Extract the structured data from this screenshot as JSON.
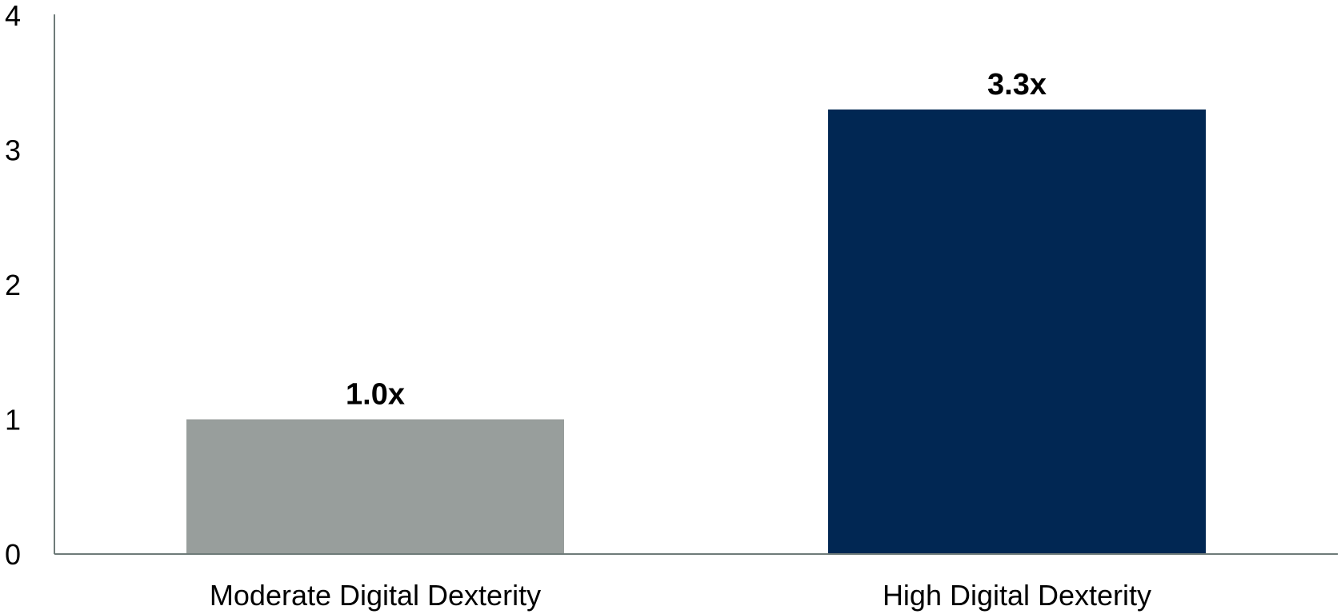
{
  "chart_data": {
    "type": "bar",
    "categories": [
      "Moderate Digital Dexterity",
      "High Digital Dexterity"
    ],
    "values": [
      1.0,
      3.3
    ],
    "data_labels": [
      "1.0x",
      "3.3x"
    ],
    "bar_colors": [
      "#989e9c",
      "#012753"
    ],
    "ylim": [
      0,
      4
    ],
    "yticks": [
      0,
      1,
      2,
      3,
      4
    ],
    "ytick_labels": [
      "0",
      "1",
      "2",
      "3",
      "4"
    ],
    "grid": false,
    "axis_color": "#6e7b79"
  }
}
